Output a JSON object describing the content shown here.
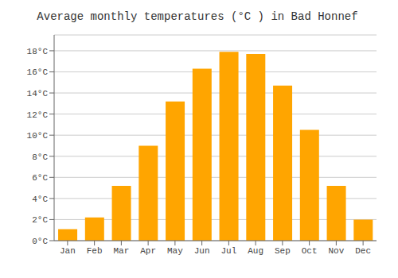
{
  "chart_data": {
    "type": "bar",
    "title": "Average monthly temperatures (°C ) in Bad Honnef",
    "categories": [
      "Jan",
      "Feb",
      "Mar",
      "Apr",
      "May",
      "Jun",
      "Jul",
      "Aug",
      "Sep",
      "Oct",
      "Nov",
      "Dec"
    ],
    "values": [
      1.1,
      2.2,
      5.2,
      9.0,
      13.2,
      16.3,
      17.9,
      17.7,
      14.7,
      10.5,
      5.2,
      2.0
    ],
    "color": "#FFA500",
    "ylim": [
      0,
      19.5
    ],
    "yticks": [
      {
        "value": 0,
        "label": "0°C"
      },
      {
        "value": 2,
        "label": "2°C"
      },
      {
        "value": 4,
        "label": "4°C"
      },
      {
        "value": 6,
        "label": "6°C"
      },
      {
        "value": 8,
        "label": "8°C"
      },
      {
        "value": 10,
        "label": "10°C"
      },
      {
        "value": 12,
        "label": "12°C"
      },
      {
        "value": 14,
        "label": "14°C"
      },
      {
        "value": 16,
        "label": "16°C"
      },
      {
        "value": 18,
        "label": "18°C"
      }
    ],
    "grid": true
  }
}
